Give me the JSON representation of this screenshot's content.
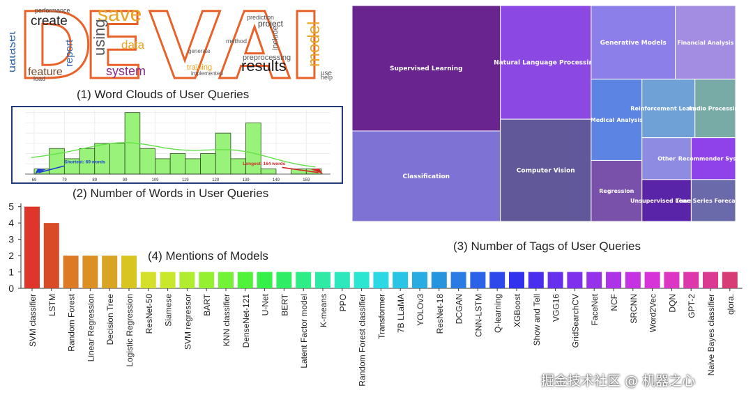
{
  "captions": {
    "wordcloud": "(1) Word Clouds of User Queries",
    "histogram": "(2) Number of Words in User Queries",
    "treemap": "(3) Number of Tags of User Queries",
    "bars": "(4) Mentions of Models"
  },
  "wordcloud": {
    "letters": [
      "D",
      "E",
      "V",
      "A",
      "I"
    ],
    "words": [
      "dataset",
      "create",
      "feature",
      "load",
      "performance",
      "report",
      "save",
      "using",
      "data",
      "system",
      "preprocessing",
      "project",
      "results",
      "model",
      "training",
      "help",
      "include",
      "prediction",
      "implemented",
      "generate",
      "method",
      "use"
    ]
  },
  "watermark": "掘金技术社区 @ 机器之心",
  "chart_data": [
    {
      "type": "bar",
      "title": "(2) Number of Words in User Queries",
      "x_tick_labels": [
        "69",
        "79",
        "89",
        "99",
        "109",
        "119",
        "129",
        "139",
        "149",
        "159"
      ],
      "bins_start": [
        69,
        74,
        79,
        84,
        89,
        94,
        99,
        104,
        109,
        114,
        119,
        124,
        129,
        134,
        139,
        144,
        149,
        154,
        159
      ],
      "bin_width": 5,
      "counts": [
        1,
        5,
        3,
        5,
        6,
        6,
        12,
        5,
        3,
        4,
        3,
        4,
        8,
        3,
        10,
        1,
        0,
        1,
        1
      ],
      "ylim": [
        0,
        12.5
      ],
      "kde": true,
      "grid": true,
      "annotations": [
        {
          "text": "Shortest: 69 words",
          "color": "#1f3fd6"
        },
        {
          "text": "Longest: 164 words",
          "color": "#d62728"
        }
      ]
    },
    {
      "type": "treemap",
      "title": "(3) Number of Tags of User Queries",
      "categories": [
        "Supervised Learning",
        "Classification",
        "Natural Language Processing",
        "Computer Vision",
        "Generative Models",
        "Financial Analysis",
        "Medical Analysis",
        "Regression",
        "Reinforcement Learning",
        "Audio Processing",
        "Other",
        "Unsupervised Learning",
        "Recommender System",
        "Time Series Forecasting"
      ],
      "values": [
        18,
        13,
        10,
        9,
        6,
        4.3,
        4,
        3,
        3,
        2.3,
        2,
        2,
        1.8,
        1.8
      ],
      "colors": [
        "#6a2490",
        "#7e73d4",
        "#8b48e2",
        "#605898",
        "#8c7fea",
        "#a28de2",
        "#5c84e2",
        "#7a51aa",
        "#6fa0d6",
        "#78aaa6",
        "#8e8ce2",
        "#5a24a8",
        "#9042ea",
        "#6a69aa"
      ]
    },
    {
      "type": "bar",
      "title": "(4) Mentions of Models",
      "categories": [
        "SVM classifier",
        "LSTM",
        "Random Forest",
        "Linear Regression",
        "Decision Tree",
        "Logistic Regression",
        "ResNet-50",
        "Siamese",
        "SVM regressor",
        "BART",
        "KNN classifier",
        "DenseNet-121",
        "U-Net",
        "BERT",
        "Latent Factor model",
        "K-means",
        "PPO",
        "Random Forest classifier",
        "Transformer",
        "7B LLaMA",
        "YOLOv3",
        "ResNet-18",
        "DCGAN",
        "CNN-LSTM",
        "Q-learning",
        "XGBoost",
        "Show and Tell",
        "VGG16",
        "GridSearchCV",
        "FaceNet",
        "NCF",
        "SRCNN",
        "Word2Vec",
        "DQN",
        "GPT-2",
        "Naive Bayes classifier",
        "qlora."
      ],
      "values": [
        5,
        4,
        2,
        2,
        2,
        2,
        1,
        1,
        1,
        1,
        1,
        1,
        1,
        1,
        1,
        1,
        1,
        1,
        1,
        1,
        1,
        1,
        1,
        1,
        1,
        1,
        1,
        1,
        1,
        1,
        1,
        1,
        1,
        1,
        1,
        1,
        1
      ],
      "y_ticks": [
        "0",
        "1",
        "2",
        "3",
        "4",
        "5"
      ],
      "ylim": [
        0,
        5.2
      ],
      "colors": [
        "#e0352a",
        "#d94b26",
        "#dc7a25",
        "#dc9024",
        "#d9a423",
        "#d8c522",
        "#d5e02a",
        "#c9e82c",
        "#b0ec30",
        "#95f032",
        "#74f236",
        "#50f23a",
        "#36f04a",
        "#2fee66",
        "#2eec86",
        "#2eeaa4",
        "#2de8bc",
        "#2ce6d2",
        "#2bd8e4",
        "#2ac4e4",
        "#28ace2",
        "#2794e0",
        "#2a7ce4",
        "#2c62e8",
        "#2e48ec",
        "#3232ee",
        "#4a2eee",
        "#6630ec",
        "#7e30ec",
        "#9632ea",
        "#ae32e6",
        "#c432e2",
        "#d634d8",
        "#dc36c4",
        "#dc38ac",
        "#da3a92",
        "#d83c76"
      ]
    }
  ]
}
